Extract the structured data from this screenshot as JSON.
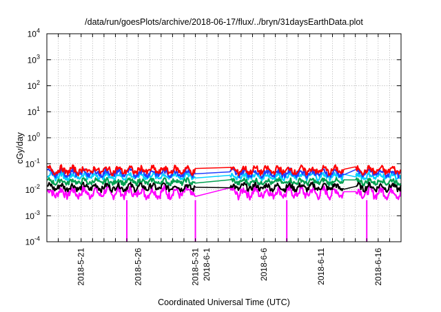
{
  "chart_data": {
    "type": "line",
    "title": "/data/run/goesPlots/archive/2018-06-17/flux/../bryn/31daysEarthData.plot",
    "xlabel": "Coordinated Universal Time (UTC)",
    "ylabel": "cGy/day",
    "yscale": "log",
    "ylim": [
      0.0001,
      10000
    ],
    "xlim": [
      "2018-05-18",
      "2018-06-18"
    ],
    "grid": true,
    "y_ticks": [
      {
        "base": "10",
        "exp": "-4"
      },
      {
        "base": "10",
        "exp": "-3"
      },
      {
        "base": "10",
        "exp": "-2"
      },
      {
        "base": "10",
        "exp": "-1"
      },
      {
        "base": "10",
        "exp": "0"
      },
      {
        "base": "10",
        "exp": "1"
      },
      {
        "base": "10",
        "exp": "2"
      },
      {
        "base": "10",
        "exp": "3"
      },
      {
        "base": "10",
        "exp": "4"
      }
    ],
    "x_ticks": [
      "2018-5-21",
      "2018-5-26",
      "2018-5-31",
      "2018-6-1",
      "2018-6-6",
      "2018-6-11",
      "2018-6-16"
    ],
    "data_gaps": [
      [
        "2018-05-31",
        "2018-06-03"
      ],
      [
        "2018-06-13",
        "2018-06-14"
      ]
    ],
    "dropouts": [
      "2018-05-25",
      "2018-05-31",
      "2018-06-08",
      "2018-06-15"
    ],
    "series": [
      {
        "color": "#ff0000",
        "low": 0.035,
        "high": 0.09
      },
      {
        "color": "#1f3fff",
        "low": 0.028,
        "high": 0.07
      },
      {
        "color": "#00d0ff",
        "low": 0.022,
        "high": 0.05
      },
      {
        "color": "#00a050",
        "low": 0.014,
        "high": 0.03
      },
      {
        "color": "#000000",
        "low": 0.008,
        "high": 0.02
      },
      {
        "color": "#ff00ff",
        "low": 0.004,
        "high": 0.015
      }
    ]
  }
}
